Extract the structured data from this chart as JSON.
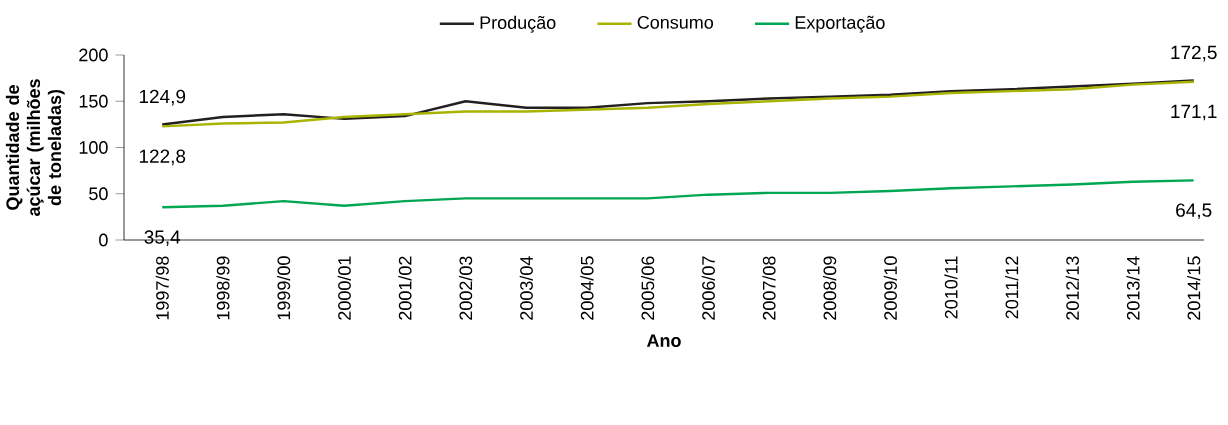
{
  "chart_data": {
    "type": "line",
    "xlabel": "Ano",
    "ylabel": "Quantidade de açúcar (milhões de toneladas)",
    "categories": [
      "1997/98",
      "1998/99",
      "1999/00",
      "2000/01",
      "2001/02",
      "2002/03",
      "2003/04",
      "2004/05",
      "2005/06",
      "2006/07",
      "2007/08",
      "2008/09",
      "2009/10",
      "2010/11",
      "2011/12",
      "2012/13",
      "2013/14",
      "2014/15"
    ],
    "series": [
      {
        "name": "Produção",
        "color": "#231f20",
        "values": [
          124.9,
          133,
          136,
          131,
          134,
          150,
          143,
          143,
          148,
          150,
          153,
          155,
          157,
          161,
          163,
          166,
          169,
          172.5
        ]
      },
      {
        "name": "Consumo",
        "color": "#a8b400",
        "values": [
          122.8,
          126,
          127,
          133,
          136,
          139,
          139,
          141,
          143,
          147,
          150,
          153,
          155,
          159,
          161,
          163,
          168,
          171.1
        ]
      },
      {
        "name": "Exportação",
        "color": "#00a651",
        "values": [
          35.4,
          37,
          42,
          37,
          42,
          45,
          45,
          45,
          45,
          49,
          51,
          51,
          53,
          56,
          58,
          60,
          63,
          64.5
        ]
      }
    ],
    "ylim": [
      0,
      200
    ],
    "yticks": [
      0,
      50,
      100,
      150,
      200
    ],
    "legend": "top",
    "line_style": "solid",
    "marker": "none",
    "annotations": [
      {
        "text": "124,9",
        "x": "1997/98",
        "y": 124.9
      },
      {
        "text": "122,8",
        "x": "1997/98",
        "y": 122.8
      },
      {
        "text": "35,4",
        "x": "1997/98",
        "y": 35.4
      },
      {
        "text": "172,5",
        "x": "2014/15",
        "y": 172.5
      },
      {
        "text": "171,1",
        "x": "2014/15",
        "y": 171.1
      },
      {
        "text": "64,5",
        "x": "2014/15",
        "y": 64.5
      }
    ]
  }
}
